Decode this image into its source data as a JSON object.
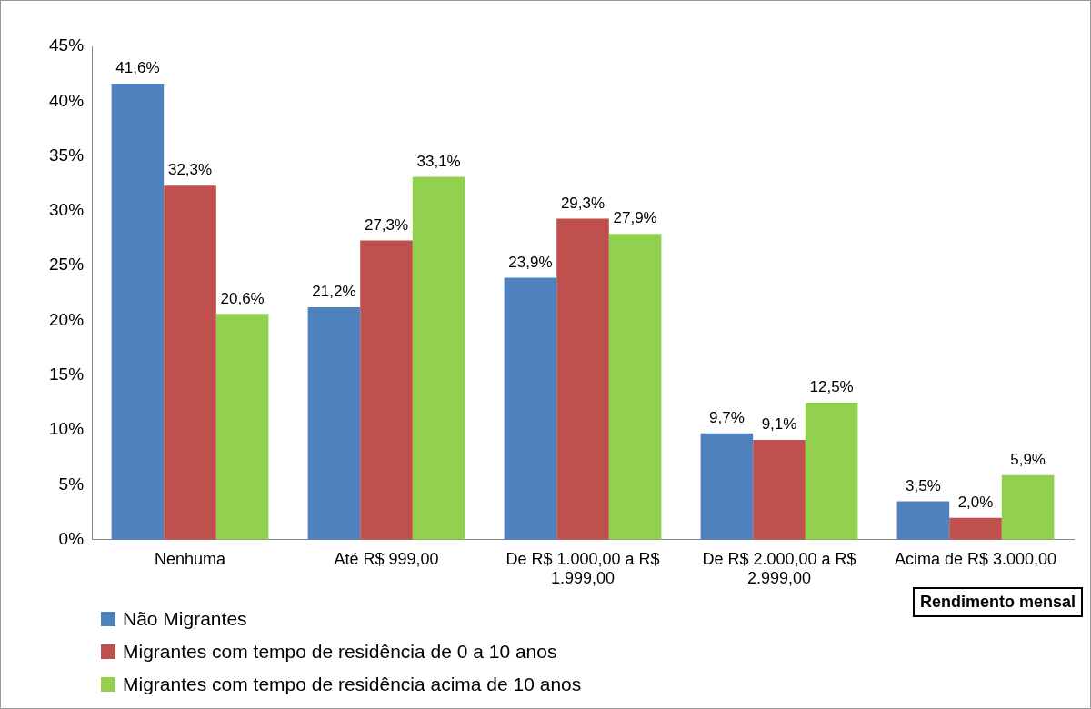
{
  "chart_data": {
    "type": "bar",
    "xlabel": "Rendimento mensal",
    "categories": [
      "Nenhuma",
      "Até R$ 999,00",
      "De R$ 1.000,00 a R$ 1.999,00",
      "De R$ 2.000,00 a R$ 2.999,00",
      "Acima de R$ 3.000,00"
    ],
    "series": [
      {
        "name": "Não Migrantes",
        "color": "#4f81bd",
        "values": [
          41.6,
          21.2,
          23.9,
          9.7,
          3.5
        ],
        "value_labels": [
          "41,6%",
          "21,2%",
          "23,9%",
          "9,7%",
          "3,5%"
        ]
      },
      {
        "name": "Migrantes com tempo de residência de 0 a 10 anos",
        "color": "#c0504d",
        "values": [
          32.3,
          27.3,
          29.3,
          9.1,
          2.0
        ],
        "value_labels": [
          "32,3%",
          "27,3%",
          "29,3%",
          "9,1%",
          "2,0%"
        ]
      },
      {
        "name": "Migrantes com tempo de residência acima de 10 anos",
        "color": "#92d050",
        "values": [
          20.6,
          33.1,
          27.9,
          12.5,
          5.9
        ],
        "value_labels": [
          "20,6%",
          "33,1%",
          "27,9%",
          "12,5%",
          "5,9%"
        ]
      }
    ],
    "ylim": [
      0,
      45
    ],
    "yticks": [
      {
        "value": 0,
        "label": "0%"
      },
      {
        "value": 5,
        "label": "5%"
      },
      {
        "value": 10,
        "label": "10%"
      },
      {
        "value": 15,
        "label": "15%"
      },
      {
        "value": 20,
        "label": "20%"
      },
      {
        "value": 25,
        "label": "25%"
      },
      {
        "value": 30,
        "label": "30%"
      },
      {
        "value": 35,
        "label": "35%"
      },
      {
        "value": 40,
        "label": "40%"
      },
      {
        "value": 45,
        "label": "45%"
      }
    ],
    "grid": false,
    "legend": "bottom left"
  }
}
